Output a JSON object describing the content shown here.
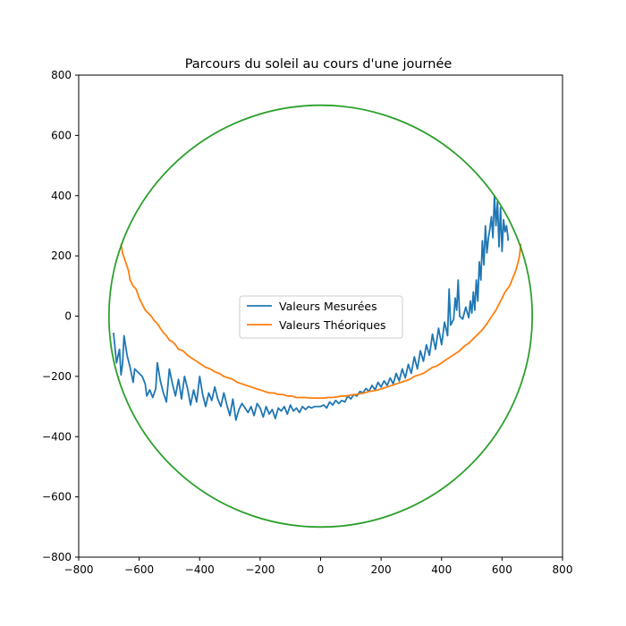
{
  "chart_data": {
    "type": "line",
    "title": "Parcours du soleil au cours d'une journée",
    "xlabel": "",
    "ylabel": "",
    "xlim": [
      -800,
      800
    ],
    "ylim": [
      -800,
      800
    ],
    "x_ticks": [
      -800,
      -600,
      -400,
      -200,
      0,
      200,
      400,
      600,
      800
    ],
    "y_ticks": [
      -800,
      -600,
      -400,
      -200,
      0,
      200,
      400,
      600,
      800
    ],
    "x_tick_labels": [
      "−800",
      "−600",
      "−400",
      "−200",
      "0",
      "200",
      "400",
      "600",
      "800"
    ],
    "y_tick_labels": [
      "−800",
      "−600",
      "−400",
      "−200",
      "0",
      "200",
      "400",
      "600",
      "800"
    ],
    "grid": false,
    "legend_position": "center",
    "series": [
      {
        "name": "Valeurs Mesurées",
        "color": "#1f77b4",
        "points": [
          [
            -685,
            -55
          ],
          [
            -675,
            -155
          ],
          [
            -665,
            -110
          ],
          [
            -660,
            -195
          ],
          [
            -655,
            -160
          ],
          [
            -650,
            -65
          ],
          [
            -640,
            -130
          ],
          [
            -630,
            -170
          ],
          [
            -620,
            -220
          ],
          [
            -615,
            -175
          ],
          [
            -600,
            -190
          ],
          [
            -590,
            -200
          ],
          [
            -580,
            -225
          ],
          [
            -575,
            -265
          ],
          [
            -565,
            -245
          ],
          [
            -555,
            -270
          ],
          [
            -545,
            -240
          ],
          [
            -540,
            -155
          ],
          [
            -530,
            -215
          ],
          [
            -520,
            -255
          ],
          [
            -510,
            -285
          ],
          [
            -500,
            -175
          ],
          [
            -490,
            -225
          ],
          [
            -480,
            -265
          ],
          [
            -470,
            -210
          ],
          [
            -460,
            -275
          ],
          [
            -450,
            -200
          ],
          [
            -440,
            -240
          ],
          [
            -430,
            -295
          ],
          [
            -420,
            -245
          ],
          [
            -410,
            -285
          ],
          [
            -400,
            -200
          ],
          [
            -390,
            -260
          ],
          [
            -380,
            -300
          ],
          [
            -370,
            -255
          ],
          [
            -360,
            -280
          ],
          [
            -350,
            -235
          ],
          [
            -340,
            -275
          ],
          [
            -330,
            -300
          ],
          [
            -320,
            -255
          ],
          [
            -310,
            -295
          ],
          [
            -300,
            -330
          ],
          [
            -290,
            -275
          ],
          [
            -280,
            -345
          ],
          [
            -270,
            -310
          ],
          [
            -260,
            -290
          ],
          [
            -250,
            -305
          ],
          [
            -240,
            -320
          ],
          [
            -230,
            -300
          ],
          [
            -220,
            -330
          ],
          [
            -210,
            -290
          ],
          [
            -200,
            -305
          ],
          [
            -190,
            -335
          ],
          [
            -180,
            -300
          ],
          [
            -170,
            -325
          ],
          [
            -160,
            -310
          ],
          [
            -150,
            -340
          ],
          [
            -140,
            -305
          ],
          [
            -130,
            -315
          ],
          [
            -120,
            -300
          ],
          [
            -110,
            -325
          ],
          [
            -100,
            -295
          ],
          [
            -90,
            -315
          ],
          [
            -80,
            -305
          ],
          [
            -70,
            -320
          ],
          [
            -60,
            -300
          ],
          [
            -50,
            -310
          ],
          [
            -40,
            -300
          ],
          [
            -30,
            -305
          ],
          [
            -20,
            -300
          ],
          [
            -10,
            -300
          ],
          [
            0,
            -300
          ],
          [
            10,
            -295
          ],
          [
            20,
            -305
          ],
          [
            30,
            -285
          ],
          [
            40,
            -295
          ],
          [
            50,
            -280
          ],
          [
            60,
            -290
          ],
          [
            70,
            -280
          ],
          [
            80,
            -285
          ],
          [
            90,
            -265
          ],
          [
            100,
            -275
          ],
          [
            110,
            -260
          ],
          [
            120,
            -265
          ],
          [
            130,
            -250
          ],
          [
            140,
            -255
          ],
          [
            150,
            -240
          ],
          [
            160,
            -250
          ],
          [
            170,
            -230
          ],
          [
            180,
            -245
          ],
          [
            190,
            -220
          ],
          [
            200,
            -235
          ],
          [
            210,
            -215
          ],
          [
            220,
            -230
          ],
          [
            230,
            -205
          ],
          [
            240,
            -225
          ],
          [
            250,
            -190
          ],
          [
            260,
            -215
          ],
          [
            270,
            -175
          ],
          [
            280,
            -205
          ],
          [
            290,
            -160
          ],
          [
            300,
            -190
          ],
          [
            310,
            -135
          ],
          [
            320,
            -175
          ],
          [
            330,
            -115
          ],
          [
            340,
            -150
          ],
          [
            350,
            -95
          ],
          [
            360,
            -130
          ],
          [
            370,
            -60
          ],
          [
            380,
            -110
          ],
          [
            390,
            -40
          ],
          [
            400,
            -95
          ],
          [
            410,
            -20
          ],
          [
            420,
            -65
          ],
          [
            425,
            90
          ],
          [
            430,
            -30
          ],
          [
            440,
            -10
          ],
          [
            445,
            60
          ],
          [
            450,
            20
          ],
          [
            455,
            120
          ],
          [
            460,
            0
          ],
          [
            470,
            -10
          ],
          [
            480,
            30
          ],
          [
            490,
            -5
          ],
          [
            495,
            50
          ],
          [
            500,
            10
          ],
          [
            505,
            80
          ],
          [
            510,
            20
          ],
          [
            515,
            120
          ],
          [
            520,
            50
          ],
          [
            525,
            180
          ],
          [
            530,
            120
          ],
          [
            535,
            250
          ],
          [
            540,
            170
          ],
          [
            545,
            300
          ],
          [
            550,
            210
          ],
          [
            555,
            260
          ],
          [
            560,
            290
          ],
          [
            565,
            330
          ],
          [
            570,
            260
          ],
          [
            575,
            400
          ],
          [
            580,
            300
          ],
          [
            585,
            380
          ],
          [
            590,
            230
          ],
          [
            595,
            360
          ],
          [
            600,
            215
          ],
          [
            605,
            320
          ],
          [
            610,
            280
          ],
          [
            615,
            300
          ],
          [
            620,
            260
          ],
          [
            620,
            250
          ]
        ]
      },
      {
        "name": "Valeurs Théoriques",
        "color": "#ff7f0e",
        "points": [
          [
            -660,
            240
          ],
          [
            -655,
            210
          ],
          [
            -645,
            180
          ],
          [
            -635,
            150
          ],
          [
            -630,
            120
          ],
          [
            -620,
            100
          ],
          [
            -610,
            90
          ],
          [
            -600,
            60
          ],
          [
            -590,
            40
          ],
          [
            -580,
            20
          ],
          [
            -570,
            10
          ],
          [
            -560,
            0
          ],
          [
            -550,
            -15
          ],
          [
            -540,
            -25
          ],
          [
            -530,
            -40
          ],
          [
            -520,
            -55
          ],
          [
            -510,
            -65
          ],
          [
            -500,
            -80
          ],
          [
            -490,
            -85
          ],
          [
            -480,
            -95
          ],
          [
            -470,
            -110
          ],
          [
            -455,
            -115
          ],
          [
            -440,
            -130
          ],
          [
            -425,
            -140
          ],
          [
            -410,
            -150
          ],
          [
            -395,
            -160
          ],
          [
            -380,
            -170
          ],
          [
            -365,
            -175
          ],
          [
            -350,
            -185
          ],
          [
            -335,
            -190
          ],
          [
            -320,
            -200
          ],
          [
            -305,
            -205
          ],
          [
            -290,
            -210
          ],
          [
            -275,
            -220
          ],
          [
            -260,
            -225
          ],
          [
            -245,
            -230
          ],
          [
            -230,
            -235
          ],
          [
            -215,
            -240
          ],
          [
            -200,
            -245
          ],
          [
            -185,
            -250
          ],
          [
            -170,
            -255
          ],
          [
            -155,
            -255
          ],
          [
            -140,
            -260
          ],
          [
            -125,
            -260
          ],
          [
            -110,
            -265
          ],
          [
            -95,
            -265
          ],
          [
            -80,
            -270
          ],
          [
            -65,
            -270
          ],
          [
            -50,
            -270
          ],
          [
            -35,
            -272
          ],
          [
            -20,
            -272
          ],
          [
            -5,
            -272
          ],
          [
            10,
            -272
          ],
          [
            25,
            -270
          ],
          [
            40,
            -270
          ],
          [
            55,
            -268
          ],
          [
            70,
            -265
          ],
          [
            85,
            -265
          ],
          [
            100,
            -262
          ],
          [
            115,
            -260
          ],
          [
            130,
            -258
          ],
          [
            145,
            -255
          ],
          [
            160,
            -250
          ],
          [
            175,
            -248
          ],
          [
            190,
            -245
          ],
          [
            205,
            -240
          ],
          [
            220,
            -235
          ],
          [
            235,
            -230
          ],
          [
            250,
            -225
          ],
          [
            265,
            -220
          ],
          [
            280,
            -215
          ],
          [
            295,
            -210
          ],
          [
            310,
            -200
          ],
          [
            325,
            -195
          ],
          [
            340,
            -190
          ],
          [
            355,
            -180
          ],
          [
            370,
            -170
          ],
          [
            385,
            -165
          ],
          [
            400,
            -155
          ],
          [
            415,
            -145
          ],
          [
            430,
            -135
          ],
          [
            445,
            -125
          ],
          [
            460,
            -115
          ],
          [
            475,
            -100
          ],
          [
            490,
            -90
          ],
          [
            505,
            -75
          ],
          [
            520,
            -60
          ],
          [
            535,
            -45
          ],
          [
            550,
            -25
          ],
          [
            560,
            -10
          ],
          [
            570,
            5
          ],
          [
            580,
            20
          ],
          [
            590,
            40
          ],
          [
            600,
            60
          ],
          [
            610,
            80
          ],
          [
            625,
            100
          ],
          [
            635,
            125
          ],
          [
            645,
            150
          ],
          [
            652,
            175
          ],
          [
            658,
            200
          ],
          [
            662,
            240
          ]
        ]
      },
      {
        "name": "",
        "color": "#2ca02c",
        "circle": {
          "cx": 0,
          "cy": 0,
          "r": 700
        }
      }
    ]
  }
}
